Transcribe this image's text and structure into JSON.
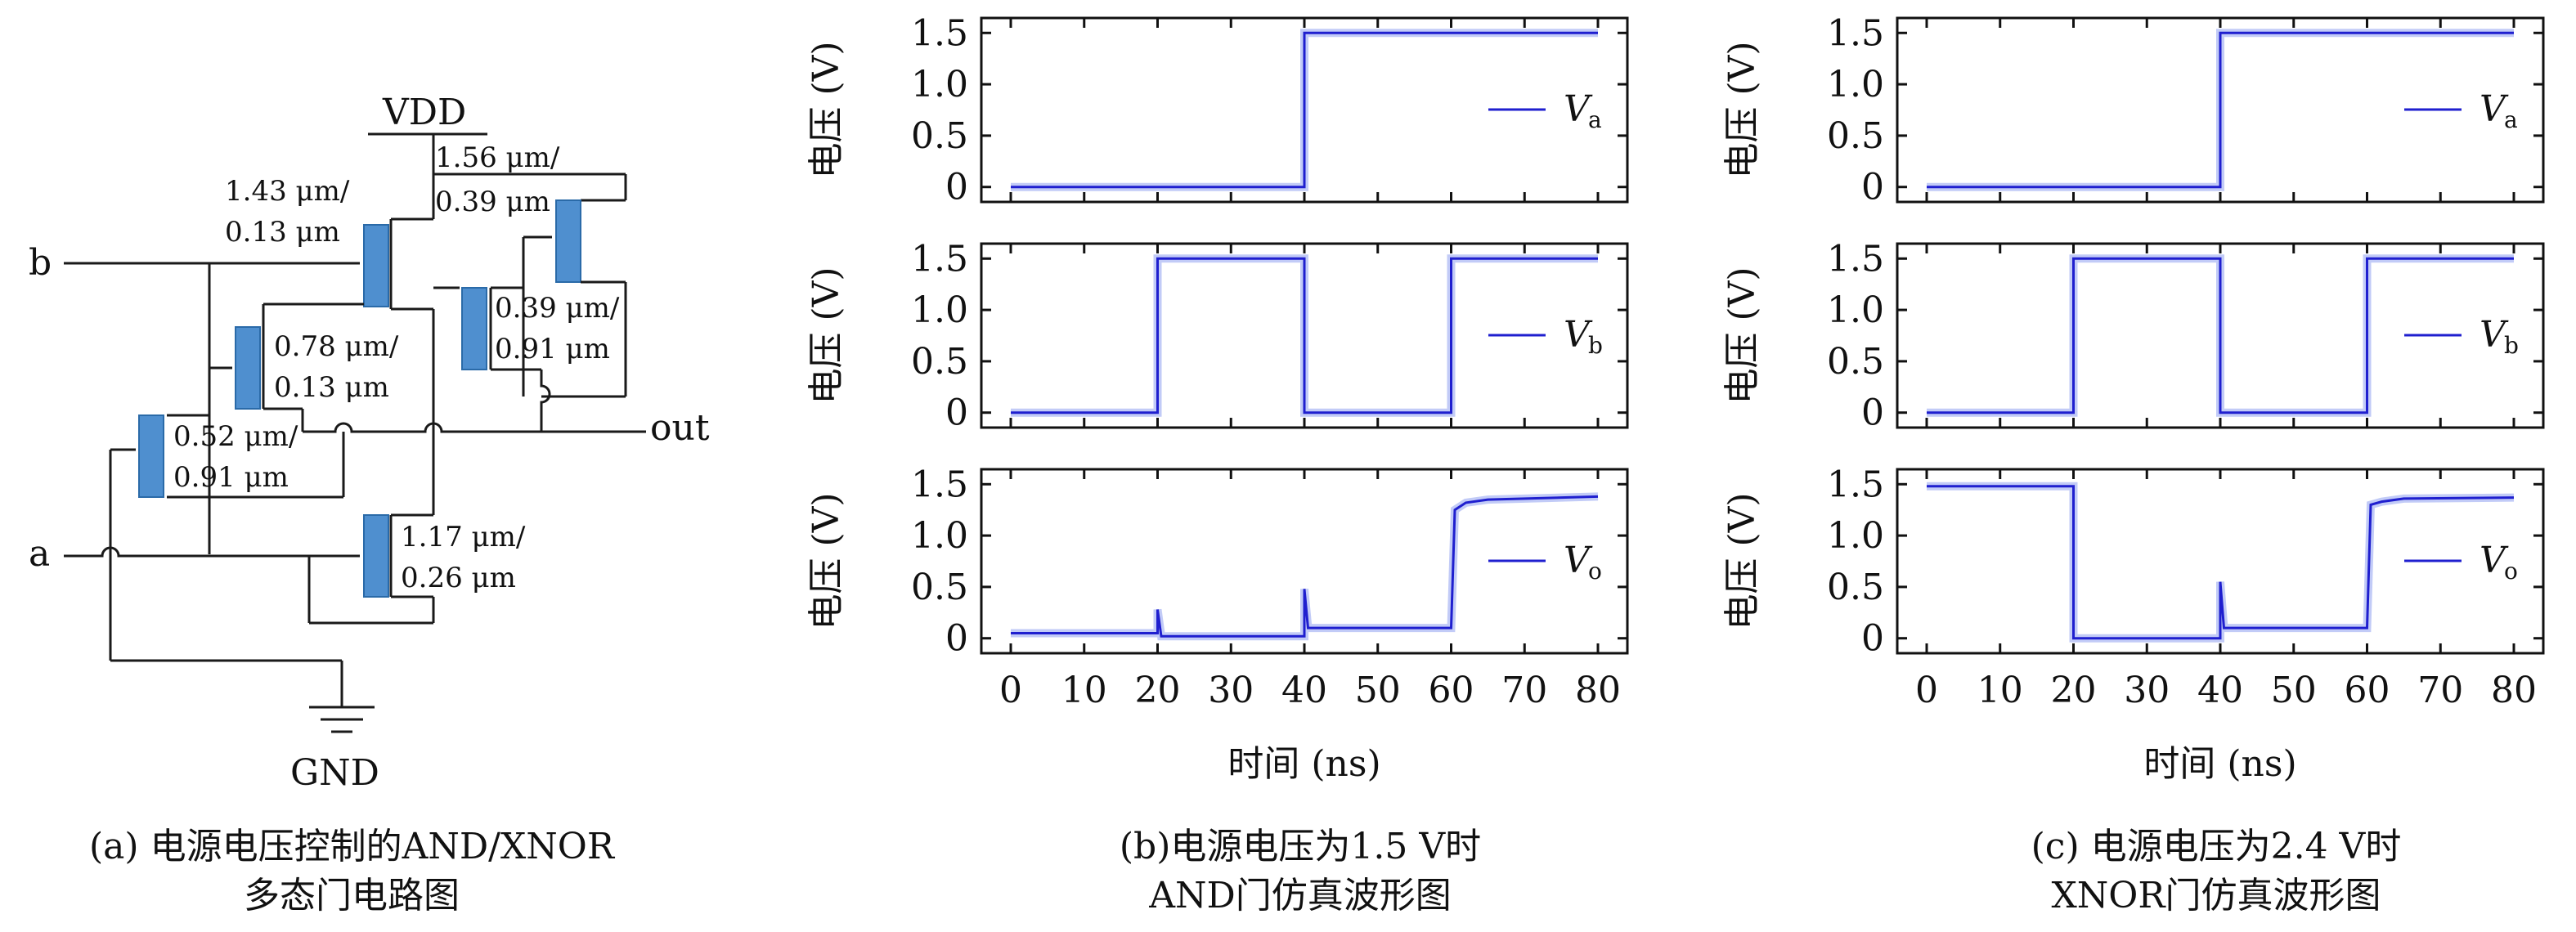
{
  "circuit": {
    "vdd": "VDD",
    "gnd": "GND",
    "in_b": "b",
    "in_a": "a",
    "out": "out",
    "sizes": {
      "t1": [
        "1.43 μm/",
        "0.13 μm"
      ],
      "t2": [
        "1.56 μm/",
        "0.39 μm"
      ],
      "t3": [
        "0.39 μm/",
        "0.91 μm"
      ],
      "t4": [
        "0.78 μm/",
        "0.13 μm"
      ],
      "t5": [
        "0.52 μm/",
        "0.91 μm"
      ],
      "t6": [
        "1.17 μm/",
        "0.26 μm"
      ]
    },
    "mos_color": "#4f8fcf",
    "caption": [
      "(a) 电源电压控制的AND/XNOR",
      "多态门电路图"
    ]
  },
  "captions": {
    "b": [
      "(b)电源电压为1.5 V时",
      "AND门仿真波形图"
    ],
    "c": [
      "(c) 电源电压为2.4 V时",
      "XNOR门仿真波形图"
    ]
  },
  "chart_data": [
    {
      "type": "line",
      "panel": "b",
      "row": "a",
      "ylabel": "电压 (V)",
      "xlim": [
        0,
        80
      ],
      "ylim": [
        -0.05,
        1.55
      ],
      "yticks": [
        "0",
        "0.5",
        "1.0",
        "1.5"
      ],
      "xticks": [],
      "legend": "Va",
      "legend_main": "V",
      "legend_sub": "a",
      "color": "#1f1fcf",
      "x": [
        0,
        40,
        40,
        80
      ],
      "y": [
        0,
        0,
        1.5,
        1.5
      ]
    },
    {
      "type": "line",
      "panel": "b",
      "row": "b",
      "ylabel": "电压 (V)",
      "xlim": [
        0,
        80
      ],
      "ylim": [
        -0.05,
        1.55
      ],
      "yticks": [
        "0",
        "0.5",
        "1.0",
        "1.5"
      ],
      "xticks": [],
      "legend": "Vb",
      "legend_main": "V",
      "legend_sub": "b",
      "color": "#1f1fcf",
      "x": [
        0,
        20,
        20,
        40,
        40,
        60,
        60,
        80
      ],
      "y": [
        0,
        0,
        1.5,
        1.5,
        0,
        0,
        1.5,
        1.5
      ]
    },
    {
      "type": "line",
      "panel": "b",
      "row": "o",
      "ylabel": "电压 (V)",
      "xlim": [
        0,
        80
      ],
      "ylim": [
        -0.05,
        1.55
      ],
      "yticks": [
        "0",
        "0.5",
        "1.0",
        "1.5"
      ],
      "xticks": [
        "0",
        "10",
        "20",
        "30",
        "40",
        "50",
        "60",
        "70",
        "80"
      ],
      "xlabel": "时间 (ns)",
      "legend": "Vo",
      "legend_main": "V",
      "legend_sub": "o",
      "color": "#1f1fcf",
      "x": [
        0,
        20,
        20,
        20.5,
        40,
        40,
        40.5,
        60,
        60.5,
        62,
        65,
        80
      ],
      "y": [
        0.05,
        0.05,
        0.28,
        0.02,
        0.02,
        0.48,
        0.1,
        0.1,
        1.25,
        1.32,
        1.35,
        1.38
      ]
    },
    {
      "type": "line",
      "panel": "c",
      "row": "a",
      "ylabel": "电压 (V)",
      "xlim": [
        0,
        80
      ],
      "ylim": [
        -0.05,
        1.55
      ],
      "yticks": [
        "0",
        "0.5",
        "1.0",
        "1.5"
      ],
      "xticks": [],
      "legend": "Va",
      "legend_main": "V",
      "legend_sub": "a",
      "color": "#1f1fcf",
      "x": [
        0,
        40,
        40,
        80
      ],
      "y": [
        0,
        0,
        1.5,
        1.5
      ]
    },
    {
      "type": "line",
      "panel": "c",
      "row": "b",
      "ylabel": "电压 (V)",
      "xlim": [
        0,
        80
      ],
      "ylim": [
        -0.05,
        1.55
      ],
      "yticks": [
        "0",
        "0.5",
        "1.0",
        "1.5"
      ],
      "xticks": [],
      "legend": "Vb",
      "legend_main": "V",
      "legend_sub": "b",
      "color": "#1f1fcf",
      "x": [
        0,
        20,
        20,
        40,
        40,
        60,
        60,
        80
      ],
      "y": [
        0,
        0,
        1.5,
        1.5,
        0,
        0,
        1.5,
        1.5
      ]
    },
    {
      "type": "line",
      "panel": "c",
      "row": "o",
      "ylabel": "电压 (V)",
      "xlim": [
        0,
        80
      ],
      "ylim": [
        -0.05,
        1.55
      ],
      "yticks": [
        "0",
        "0.5",
        "1.0",
        "1.5"
      ],
      "xticks": [
        "0",
        "10",
        "20",
        "30",
        "40",
        "50",
        "60",
        "70",
        "80"
      ],
      "xlabel": "时间 (ns)",
      "legend": "Vo",
      "legend_main": "V",
      "legend_sub": "o",
      "color": "#1f1fcf",
      "x": [
        0,
        20,
        20,
        40,
        40,
        40.5,
        60,
        60.5,
        62,
        65,
        80
      ],
      "y": [
        1.48,
        1.48,
        0.0,
        0.0,
        0.55,
        0.1,
        0.1,
        1.3,
        1.33,
        1.36,
        1.37
      ]
    }
  ]
}
